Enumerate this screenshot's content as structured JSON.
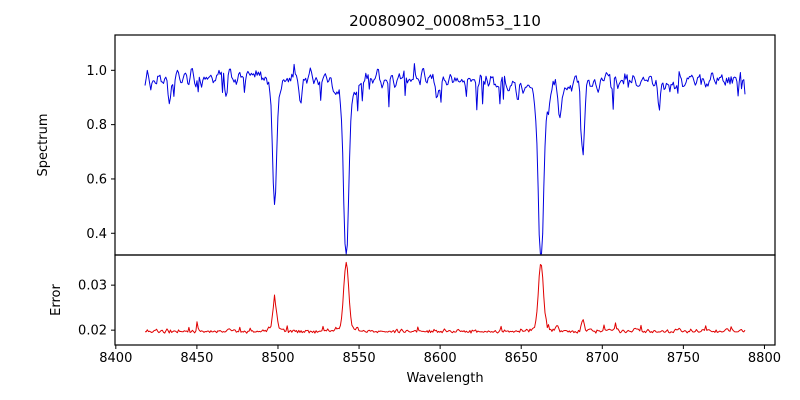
{
  "figure": {
    "title": "20080902_0008m53_110"
  },
  "chart_data": {
    "type": "line",
    "title": "20080902_0008m53_110",
    "xlabel": "Wavelength",
    "x_range": [
      8418,
      8788
    ],
    "xlim": [
      8399.5,
      8806.5
    ],
    "n_points": 520,
    "x_ticks": [
      {
        "value": 8400,
        "label": "8400"
      },
      {
        "value": 8450,
        "label": "8450"
      },
      {
        "value": 8500,
        "label": "8500"
      },
      {
        "value": 8550,
        "label": "8550"
      },
      {
        "value": 8600,
        "label": "8600"
      },
      {
        "value": 8650,
        "label": "8650"
      },
      {
        "value": 8700,
        "label": "8700"
      },
      {
        "value": 8750,
        "label": "8750"
      },
      {
        "value": 8800,
        "label": "8800"
      }
    ],
    "panels": [
      {
        "name": "spectrum",
        "ylabel": "Spectrum",
        "color": "#0000e0",
        "line_width": 1,
        "ylim": [
          0.32,
          1.13
        ],
        "y_ticks": [
          {
            "value": 0.4,
            "label": "0.4"
          },
          {
            "value": 0.6,
            "label": "0.6"
          },
          {
            "value": 0.8,
            "label": "0.8"
          },
          {
            "value": 1.0,
            "label": "1.0"
          }
        ],
        "continuum": 0.965,
        "noise_amplitude": 0.048,
        "spike_depth": 0.09,
        "absorption_lines": [
          {
            "center": 8433.0,
            "depth": 0.12,
            "sigma": 0.9
          },
          {
            "center": 8468.0,
            "depth": 0.08,
            "sigma": 0.8
          },
          {
            "center": 8498.0,
            "depth": 0.425,
            "sigma": 1.2
          },
          {
            "center": 8498.0,
            "depth": 0.04,
            "sigma": 5.0
          },
          {
            "center": 8514.0,
            "depth": 0.1,
            "sigma": 0.8
          },
          {
            "center": 8542.1,
            "depth": 0.61,
            "sigma": 1.6
          },
          {
            "center": 8542.1,
            "depth": 0.06,
            "sigma": 6.0
          },
          {
            "center": 8598.0,
            "depth": 0.07,
            "sigma": 0.8
          },
          {
            "center": 8648.0,
            "depth": 0.07,
            "sigma": 0.8
          },
          {
            "center": 8662.1,
            "depth": 0.605,
            "sigma": 1.6
          },
          {
            "center": 8662.1,
            "depth": 0.06,
            "sigma": 6.0
          },
          {
            "center": 8674.0,
            "depth": 0.12,
            "sigma": 0.9
          },
          {
            "center": 8688.0,
            "depth": 0.275,
            "sigma": 1.0
          },
          {
            "center": 8735.0,
            "depth": 0.08,
            "sigma": 0.8
          }
        ]
      },
      {
        "name": "error",
        "ylabel": "Error",
        "color": "#e00000",
        "line_width": 1,
        "ylim": [
          0.0167,
          0.0367
        ],
        "y_ticks": [
          {
            "value": 0.02,
            "label": "0.02"
          },
          {
            "value": 0.03,
            "label": "0.03"
          }
        ],
        "baseline": 0.0195,
        "noise_amplitude": 0.0009,
        "spike_height": 0.0016,
        "peaks": [
          {
            "center": 8498.0,
            "height": 0.0062,
            "sigma": 1.2
          },
          {
            "center": 8498.0,
            "height": 0.0006,
            "sigma": 4.0
          },
          {
            "center": 8542.1,
            "height": 0.0146,
            "sigma": 1.5
          },
          {
            "center": 8542.1,
            "height": 0.0008,
            "sigma": 5.0
          },
          {
            "center": 8662.1,
            "height": 0.0144,
            "sigma": 1.5
          },
          {
            "center": 8662.1,
            "height": 0.0008,
            "sigma": 5.0
          },
          {
            "center": 8672.0,
            "height": 0.0012,
            "sigma": 0.8
          },
          {
            "center": 8688.0,
            "height": 0.0028,
            "sigma": 0.9
          }
        ]
      }
    ]
  }
}
